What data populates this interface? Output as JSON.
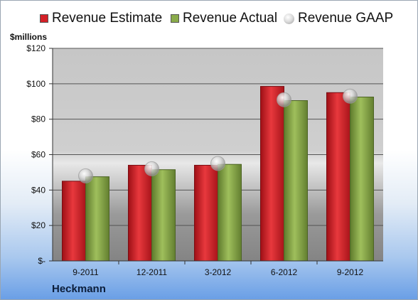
{
  "chart_data": {
    "type": "bar",
    "categories": [
      "9-2011",
      "12-2011",
      "3-2012",
      "6-2012",
      "9-2012"
    ],
    "series": [
      {
        "name": "Revenue Estimate",
        "values": [
          45,
          54,
          54,
          98.5,
          95
        ],
        "color": "#d42027",
        "marker": "bar"
      },
      {
        "name": "Revenue Actual",
        "values": [
          47.5,
          51.5,
          54.5,
          90.5,
          92.5
        ],
        "color": "#8aab4a",
        "marker": "bar"
      },
      {
        "name": "Revenue GAAP",
        "values": [
          48,
          52,
          55,
          91,
          93
        ],
        "color": "#bfbfbf",
        "marker": "point"
      }
    ],
    "ylabel": "$millions",
    "ylim": [
      0,
      120
    ],
    "yticks": [
      0,
      20,
      40,
      60,
      80,
      100,
      120
    ],
    "ytick_labels": [
      "$-",
      "$20",
      "$40",
      "$60",
      "$80",
      "$100",
      "$120"
    ],
    "grid": true,
    "legend_position": "top",
    "footer": "Heckmann"
  }
}
